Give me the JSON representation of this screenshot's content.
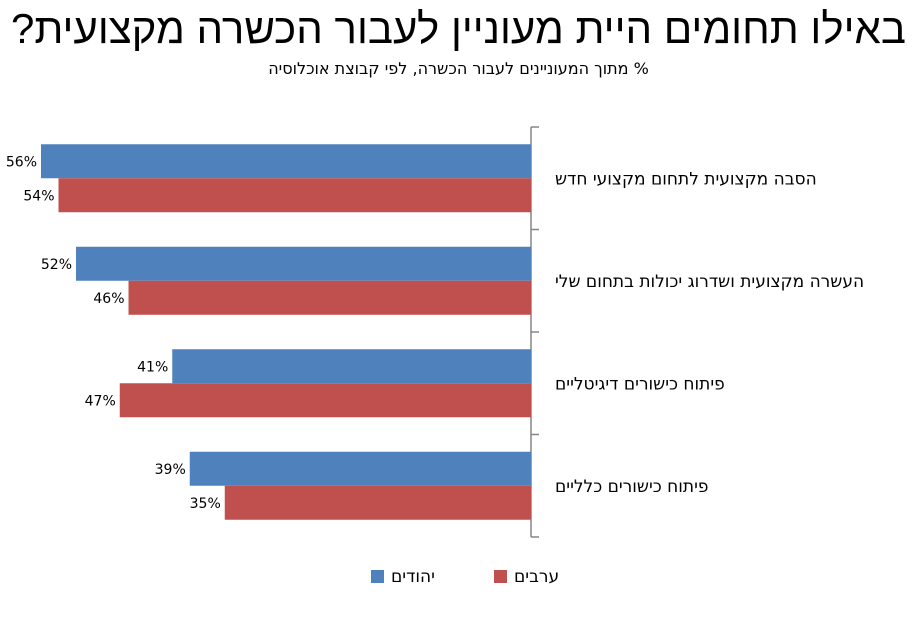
{
  "title": "באילו תחומים היית מעוניין לעבור הכשרה מקצועית?",
  "subtitle": "% מתוך המעוניינים לעבור הכשרה, לפי קבוצת אוכלוסיה",
  "colors": {
    "series_0": "#4f81bd",
    "series_1": "#c0504d",
    "axis": "#868686"
  },
  "chart_data": {
    "type": "bar",
    "orientation": "horizontal",
    "title": "באילו תחומים היית מעוניין לעבור הכשרה מקצועית?",
    "subtitle": "% מתוך המעוניינים לעבור הכשרה, לפי קבוצת אוכלוסיה",
    "categories": [
      "הסבה מקצועית לתחום מקצועי חדש",
      "העשרה מקצועית ושדרוג יכולות בתחום שלי",
      "פיתוח כישורים דיגיטליים",
      "פיתוח כישורים כלליים"
    ],
    "series": [
      {
        "name": "יהודים",
        "values": [
          56,
          52,
          41,
          39
        ],
        "labels": [
          "56%",
          "52%",
          "41%",
          "39%"
        ]
      },
      {
        "name": "ערבים",
        "values": [
          54,
          46,
          47,
          35
        ],
        "labels": [
          "54%",
          "46%",
          "47%",
          "35%"
        ]
      }
    ],
    "xlim": [
      0,
      60
    ],
    "bar_direction": "right-to-left",
    "legend_position": "bottom",
    "grid": false
  }
}
